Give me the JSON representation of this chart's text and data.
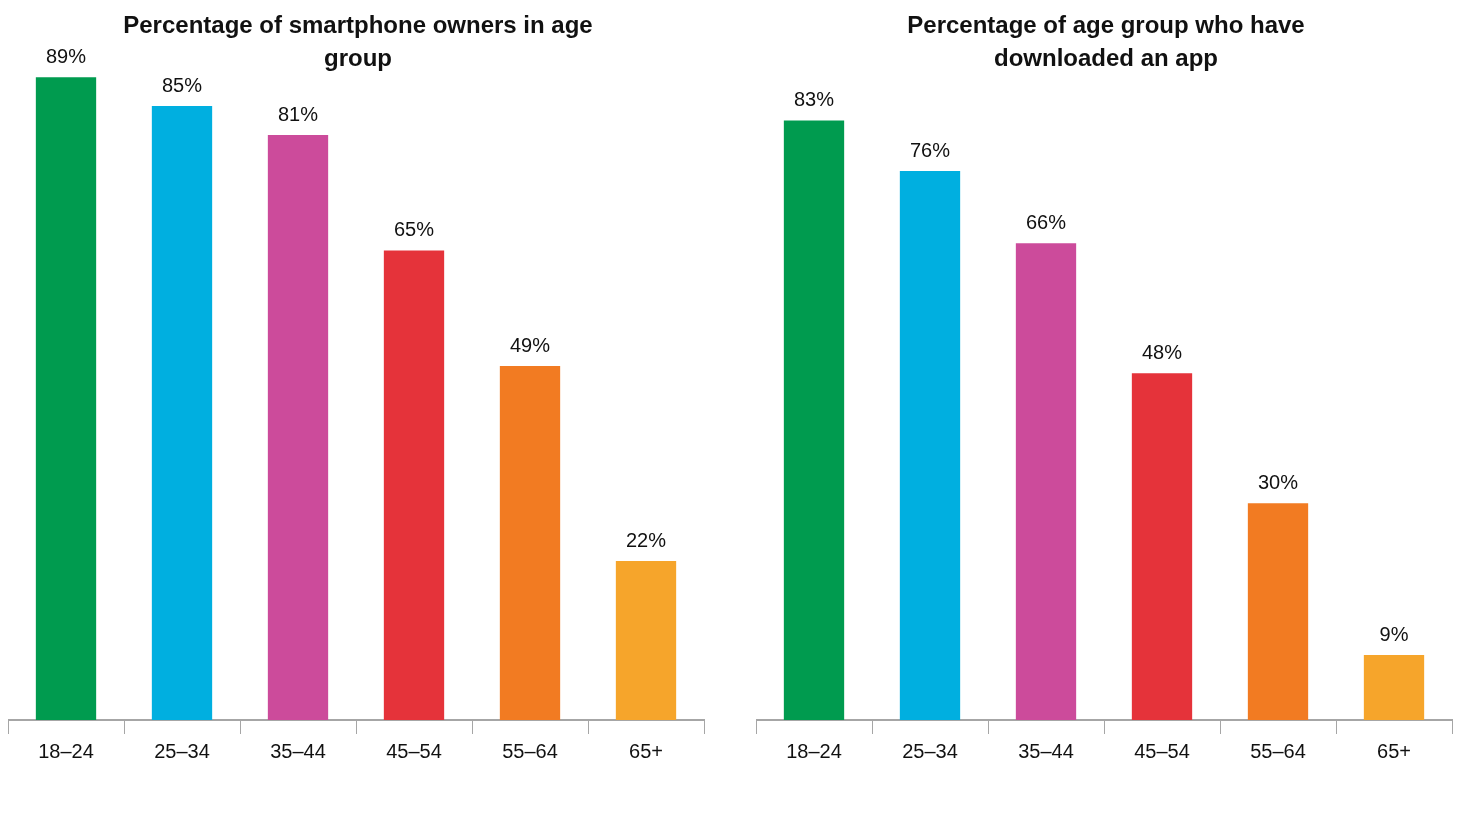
{
  "chart_data": [
    {
      "type": "bar",
      "title": "Percentage of smartphone owners in age group",
      "categories": [
        "18–24",
        "25–34",
        "35–44",
        "45–54",
        "55–64",
        "65+"
      ],
      "values": [
        89,
        85,
        81,
        65,
        49,
        22
      ],
      "colors": [
        "#009b4f",
        "#00afe0",
        "#cc4b9b",
        "#e5333a",
        "#f27b22",
        "#f6a52b"
      ],
      "value_labels": [
        "89%",
        "85%",
        "81%",
        "65%",
        "49%",
        "22%"
      ],
      "grid": false,
      "legend": false,
      "tick_labels": "x"
    },
    {
      "type": "bar",
      "title": "Percentage of age group who have downloaded an app",
      "categories": [
        "18–24",
        "25–34",
        "35–44",
        "45–54",
        "55–64",
        "65+"
      ],
      "values": [
        83,
        76,
        66,
        48,
        30,
        9
      ],
      "colors": [
        "#009b4f",
        "#00afe0",
        "#cc4b9b",
        "#e5333a",
        "#f27b22",
        "#f6a52b"
      ],
      "value_labels": [
        "83%",
        "76%",
        "66%",
        "48%",
        "30%",
        "9%"
      ],
      "grid": false,
      "legend": false,
      "tick_labels": "x"
    }
  ]
}
